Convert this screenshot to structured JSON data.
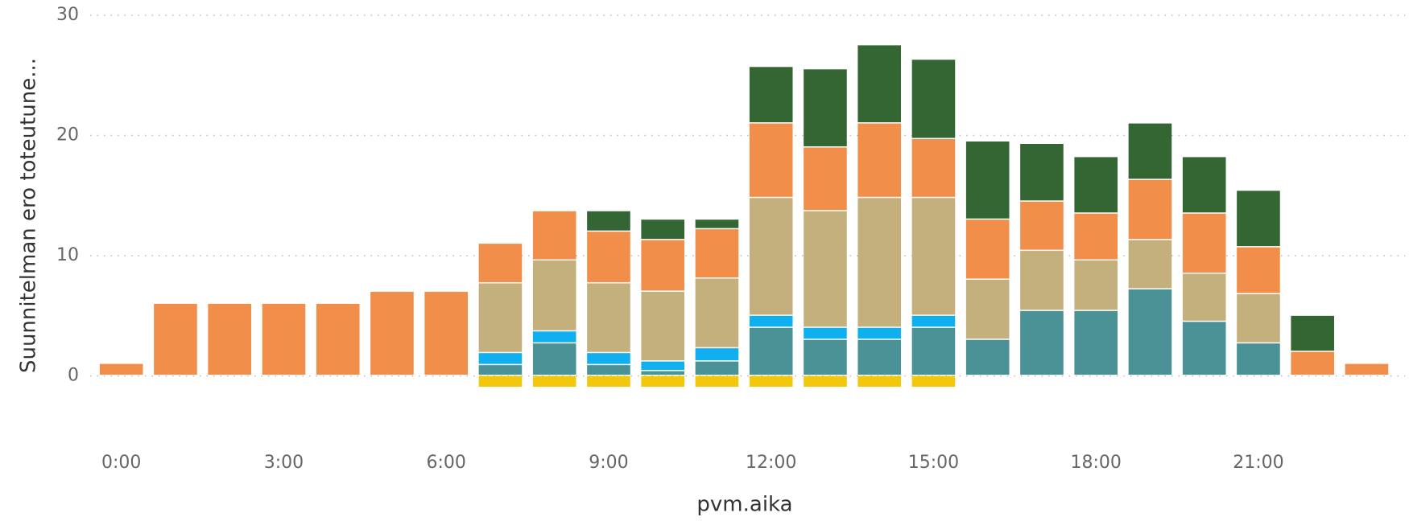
{
  "chart_data": {
    "type": "stacked_bar",
    "x_label": "pvm.aika",
    "y_label": "Suunnitelman ero toteutune...",
    "categories": [
      "0:00",
      null,
      null,
      "3:00",
      null,
      null,
      "6:00",
      null,
      null,
      "9:00",
      null,
      null,
      "12:00",
      null,
      null,
      "15:00",
      null,
      null,
      "18:00",
      null,
      null,
      "21:00",
      null,
      null
    ],
    "series": [
      {
        "color": "#f2c80f",
        "values": [
          null,
          null,
          null,
          null,
          null,
          null,
          null,
          -1,
          -1,
          -1,
          -1,
          -1,
          -1,
          -1,
          -1,
          -1,
          null,
          null,
          null,
          null,
          null,
          null,
          null,
          null
        ]
      },
      {
        "color": "#4a9296",
        "values": [
          null,
          null,
          null,
          null,
          null,
          null,
          null,
          0.9,
          2.7,
          0.9,
          0.4,
          1.2,
          4.0,
          3.0,
          3.0,
          4.0,
          3.0,
          5.4,
          5.4,
          7.2,
          4.5,
          2.7,
          null,
          null
        ]
      },
      {
        "color": "#10b0f0",
        "values": [
          null,
          null,
          null,
          null,
          null,
          null,
          null,
          1.0,
          1.0,
          1.0,
          0.8,
          1.1,
          1.0,
          1.0,
          1.0,
          1.0,
          null,
          null,
          null,
          null,
          null,
          null,
          null,
          null
        ]
      },
      {
        "color": "#c4b07c",
        "values": [
          null,
          null,
          null,
          null,
          null,
          null,
          null,
          5.8,
          5.9,
          5.8,
          5.8,
          5.8,
          9.8,
          9.7,
          10.8,
          9.8,
          5.0,
          5.0,
          4.2,
          4.1,
          4.0,
          4.1,
          null,
          null
        ]
      },
      {
        "color": "#f08e4a",
        "values": [
          1,
          6,
          6,
          6,
          6,
          7,
          7,
          3.3,
          4.1,
          4.3,
          4.3,
          4.1,
          6.2,
          5.3,
          6.2,
          4.9,
          5.0,
          4.1,
          3.9,
          5.0,
          5.0,
          3.9,
          2,
          1
        ]
      },
      {
        "color": "#336633",
        "values": [
          null,
          null,
          null,
          null,
          null,
          null,
          null,
          null,
          null,
          1.7,
          1.7,
          0.8,
          4.7,
          6.5,
          6.5,
          6.6,
          6.5,
          4.8,
          4.7,
          4.7,
          4.7,
          4.7,
          3,
          null
        ]
      }
    ],
    "ylim": [
      -4,
      30
    ],
    "yticks": [
      0,
      10,
      20,
      30
    ],
    "grid": true
  }
}
